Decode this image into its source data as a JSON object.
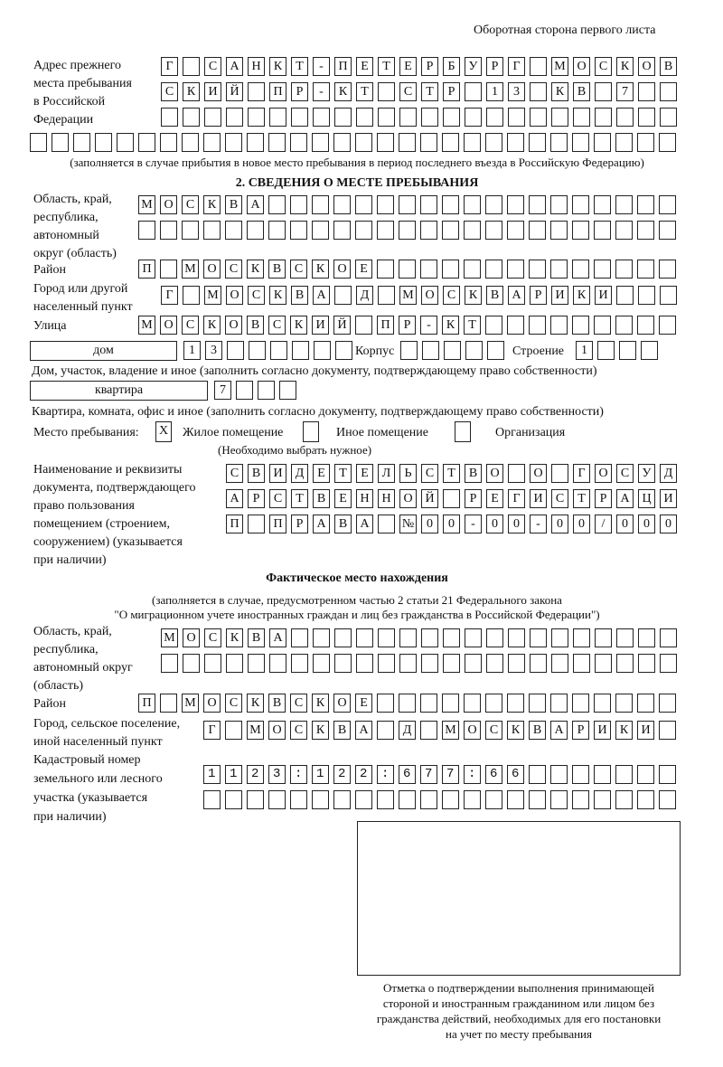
{
  "header": "Оборотная сторона первого листа",
  "prev_address": {
    "label": "Адрес прежнего\nместа пребывания\nв Российской\nФедерации",
    "rows": [
      "Г_САНКТ-ПЕТЕРБУРГ_МОСКОВ",
      "СКИЙ_ПР-КТ_СТР_13_КВ_7",
      "",
      ""
    ],
    "note": "(заполняется в случае прибытия в новое место пребывания в период последнего въезда в Российскую Федерацию)"
  },
  "section2": {
    "title": "2. СВЕДЕНИЯ О МЕСТЕ ПРЕБЫВАНИЯ",
    "region_label": "Область, край,\nреспублика,\nавтономный\nокруг (область)",
    "region_rows": [
      "МОСКВА",
      ""
    ],
    "district_label": "Район",
    "district": "П_МОСКВСКОЕ",
    "city_label": "Город или другой\nнаселенный пункт",
    "city": "Г_МОСКВА_Д_МОСКВАРИКИ",
    "street_label": "Улица",
    "street": "МОСКОВСКИЙ_ПР-КТ",
    "house_type": "дом",
    "house": "13",
    "korpus_label": "Корпус",
    "korpus": "",
    "building_label": "Строение",
    "building": "1",
    "house_note": "Дом, участок, владение и иное (заполнить согласно документу, подтверждающему право собственности)",
    "flat_type": "квартира",
    "flat": "7",
    "flat_note": "Квартира, комната, офис и иное (заполнить согласно документу, подтверждающему право собственности)",
    "stay_label": "Место пребывания:",
    "opt1": "Жилое помещение",
    "opt1_value": "X",
    "opt2": "Иное помещение",
    "opt3": "Организация",
    "choose_note": "(Необходимо выбрать нужное)",
    "doc_label": "Наименование и реквизиты\nдокумента, подтверждающего\nправо пользования\nпомещением (строением,\nсооружением) (указывается\nпри наличии)",
    "doc_rows": [
      "СВИДЕТЕЛЬСТВО_О_ГОСУД",
      "АРСТВЕННОЙ_РЕГИСТРАЦИ",
      "П_ПРАВА_№00-00-00/000"
    ]
  },
  "actual": {
    "title": "Фактическое место нахождения",
    "note1": "(заполняется в случае, предусмотренном частью 2 статьи 21 Федерального закона",
    "note2": "\"О миграционном учете иностранных граждан и лиц без гражданства в Российской Федерации\")",
    "region_label": "Область, край,\nреспублика,\nавтономный округ\n(область)",
    "region_rows": [
      "МОСКВА",
      ""
    ],
    "district_label": "Район",
    "district": "П_МОСКВСКОЕ",
    "city_label": "Город, сельское поселение,\nиной населенный пункт",
    "city": "Г_МОСКВА_Д_МОСКВАРИКИ",
    "cad_label": "Кадастровый номер\nземельного или лесного\nучастка (указывается\nпри наличии)",
    "cad_rows": [
      "1123:122:677:66",
      ""
    ]
  },
  "stamp_caption": "Отметка о подтверждении выполнения принимающей\nстороной и иностранным гражданином или лицом без\nгражданства действий, необходимых для его постановки\nна учет по месту пребывания"
}
